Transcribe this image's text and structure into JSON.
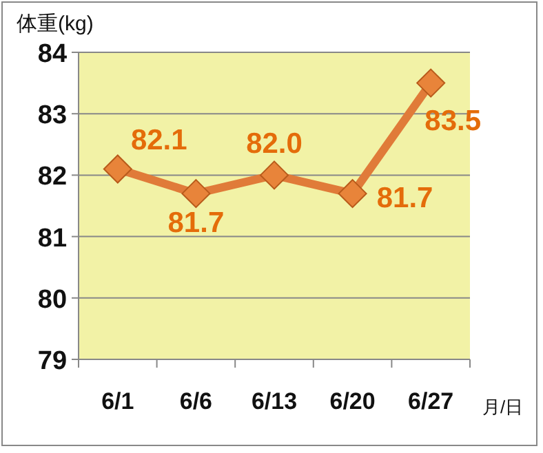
{
  "chart_data": {
    "type": "line",
    "ylabel": "体重(kg)",
    "xlabel": "月/日",
    "categories": [
      "6/1",
      "6/6",
      "6/13",
      "6/20",
      "6/27"
    ],
    "series": [
      {
        "color": "#e07b39",
        "values": [
          82.1,
          81.7,
          82.0,
          81.7,
          83.5
        ],
        "value_labels": [
          "82.1",
          "81.7",
          "82.0",
          "81.7",
          "83.5"
        ]
      }
    ],
    "ylim": [
      79,
      84
    ],
    "yticks": [
      79,
      80,
      81,
      82,
      83,
      84
    ],
    "grid": "y",
    "marker": "diamond",
    "line_style": "solid"
  }
}
